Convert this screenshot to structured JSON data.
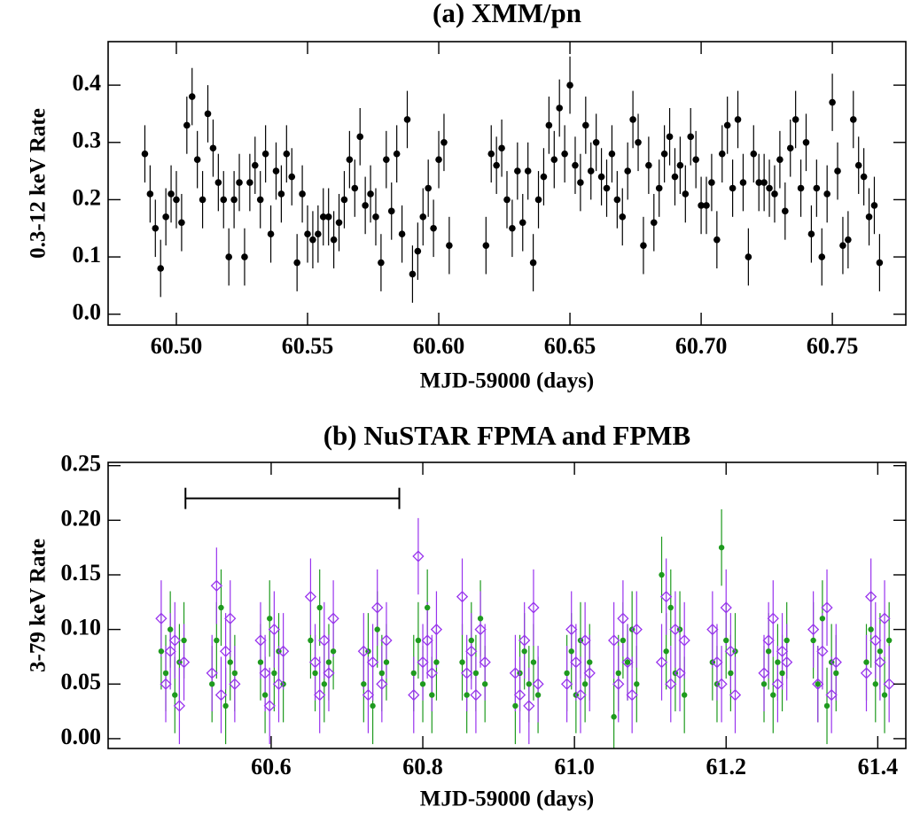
{
  "chart_data": [
    {
      "type": "scatter",
      "title": "(a) XMM/pn",
      "xlabel": "MJD-59000 (days)",
      "ylabel": "0.3-12 keV Rate",
      "xlim": [
        60.474,
        60.778
      ],
      "ylim": [
        -0.019,
        0.476
      ],
      "xticks": [
        {
          "value": 60.5,
          "label": "60.50"
        },
        60.55,
        {
          "value": 60.6,
          "label": "60.60"
        },
        60.65,
        {
          "value": 60.7,
          "label": "60.70"
        },
        60.75
      ],
      "yticks": [
        {
          "value": 0,
          "label": "0.0"
        },
        0.1,
        0.2,
        0.3,
        0.4
      ],
      "x": [
        60.488,
        60.49,
        60.492,
        60.494,
        60.496,
        60.498,
        60.5,
        60.502,
        60.504,
        60.506,
        60.508,
        60.51,
        60.512,
        60.514,
        60.516,
        60.518,
        60.52,
        60.522,
        60.524,
        60.526,
        60.528,
        60.53,
        60.532,
        60.534,
        60.536,
        60.538,
        60.54,
        60.542,
        60.544,
        60.546,
        60.548,
        60.55,
        60.552,
        60.554,
        60.556,
        60.558,
        60.56,
        60.562,
        60.564,
        60.566,
        60.568,
        60.57,
        60.572,
        60.574,
        60.576,
        60.578,
        60.58,
        60.582,
        60.584,
        60.586,
        60.588,
        60.59,
        60.592,
        60.594,
        60.596,
        60.598,
        60.6,
        60.602,
        60.604,
        60.618,
        60.62,
        60.622,
        60.624,
        60.626,
        60.628,
        60.63,
        60.632,
        60.634,
        60.636,
        60.638,
        60.64,
        60.642,
        60.644,
        60.646,
        60.648,
        60.65,
        60.652,
        60.654,
        60.656,
        60.658,
        60.66,
        60.662,
        60.664,
        60.666,
        60.668,
        60.67,
        60.672,
        60.674,
        60.676,
        60.678,
        60.68,
        60.682,
        60.684,
        60.686,
        60.688,
        60.69,
        60.692,
        60.694,
        60.696,
        60.698,
        60.7,
        60.702,
        60.704,
        60.706,
        60.708,
        60.71,
        60.712,
        60.714,
        60.716,
        60.718,
        60.72,
        60.722,
        60.724,
        60.726,
        60.728,
        60.73,
        60.732,
        60.734,
        60.736,
        60.738,
        60.74,
        60.742,
        60.744,
        60.746,
        60.748,
        60.75,
        60.752,
        60.754,
        60.756,
        60.758,
        60.76,
        60.762,
        60.764,
        60.766,
        60.768
      ],
      "series": [
        {
          "color": "#000000",
          "marker": "circle",
          "error": 0.05,
          "values": [
            0.28,
            0.21,
            0.15,
            0.08,
            0.17,
            0.21,
            0.2,
            0.16,
            0.33,
            0.38,
            0.27,
            0.2,
            0.35,
            0.29,
            0.23,
            0.2,
            0.1,
            0.2,
            0.23,
            0.1,
            0.23,
            0.26,
            0.2,
            0.28,
            0.14,
            0.25,
            0.21,
            0.28,
            0.24,
            0.09,
            0.21,
            0.14,
            0.13,
            0.14,
            0.17,
            0.17,
            0.13,
            0.16,
            0.2,
            0.27,
            0.22,
            0.31,
            0.19,
            0.21,
            0.17,
            0.09,
            0.27,
            0.18,
            0.28,
            0.14,
            0.34,
            0.07,
            0.11,
            0.17,
            0.22,
            0.15,
            0.27,
            0.3,
            0.12,
            0.12,
            0.28,
            0.26,
            0.29,
            0.2,
            0.15,
            0.25,
            0.16,
            0.25,
            0.09,
            0.2,
            0.24,
            0.33,
            0.27,
            0.36,
            0.28,
            0.4,
            0.26,
            0.23,
            0.33,
            0.25,
            0.3,
            0.24,
            0.22,
            0.28,
            0.2,
            0.17,
            0.25,
            0.34,
            0.3,
            0.12,
            0.26,
            0.16,
            0.22,
            0.28,
            0.31,
            0.24,
            0.26,
            0.21,
            0.31,
            0.27,
            0.19,
            0.19,
            0.23,
            0.13,
            0.28,
            0.33,
            0.22,
            0.34,
            0.23,
            0.1,
            0.28,
            0.23,
            0.23,
            0.22,
            0.21,
            0.27,
            0.18,
            0.29,
            0.34,
            0.22,
            0.3,
            0.14,
            0.22,
            0.1,
            0.21,
            0.37,
            0.25,
            0.12,
            0.13,
            0.34,
            0.26,
            0.24,
            0.17,
            0.19,
            0.09
          ]
        }
      ]
    },
    {
      "type": "scatter",
      "title": "(b) NuSTAR FPMA and FPMB",
      "xlabel": "MJD-59000 (days)",
      "ylabel": "3-79 keV Rate",
      "xlim": [
        60.385,
        61.437
      ],
      "ylim": [
        -0.009,
        0.253
      ],
      "xticks": [
        60.6,
        60.8,
        {
          "value": 61.0,
          "label": "61.0"
        },
        61.2,
        61.4
      ],
      "yticks": [
        {
          "value": 0,
          "label": "0.00"
        },
        0.05,
        {
          "value": 0.1,
          "label": "0.10"
        },
        0.15,
        {
          "value": 0.2,
          "label": "0.20"
        },
        0.25
      ],
      "span": {
        "x": [
          60.487,
          60.769
        ],
        "y": 0.22
      },
      "x": [
        60.455,
        60.461,
        60.467,
        60.473,
        60.479,
        60.485,
        60.522,
        60.528,
        60.534,
        60.54,
        60.546,
        60.552,
        60.586,
        60.592,
        60.598,
        60.604,
        60.61,
        60.616,
        60.652,
        60.658,
        60.664,
        60.67,
        60.676,
        60.682,
        60.722,
        60.728,
        60.734,
        60.74,
        60.746,
        60.752,
        60.788,
        60.794,
        60.8,
        60.806,
        60.812,
        60.818,
        60.852,
        60.858,
        60.864,
        60.87,
        60.876,
        60.882,
        60.922,
        60.928,
        60.934,
        60.94,
        60.946,
        60.952,
        60.99,
        60.996,
        61.002,
        61.008,
        61.014,
        61.02,
        61.052,
        61.058,
        61.064,
        61.07,
        61.076,
        61.082,
        61.115,
        61.121,
        61.127,
        61.133,
        61.139,
        61.145,
        61.182,
        61.188,
        61.194,
        61.2,
        61.206,
        61.212,
        61.25,
        61.256,
        61.262,
        61.268,
        61.274,
        61.28,
        61.315,
        61.321,
        61.327,
        61.333,
        61.339,
        61.345,
        61.385,
        61.391,
        61.397,
        61.403,
        61.409,
        61.415
      ],
      "series": [
        {
          "color": "#1e9a1e",
          "marker": "circle",
          "error": 0.035,
          "values": [
            0.08,
            0.06,
            0.1,
            0.04,
            0.07,
            0.09,
            0.05,
            0.09,
            0.12,
            0.03,
            0.07,
            0.06,
            0.07,
            0.04,
            0.11,
            0.06,
            0.08,
            0.05,
            0.09,
            0.06,
            0.12,
            0.05,
            0.07,
            0.08,
            0.05,
            0.08,
            0.03,
            0.1,
            0.06,
            0.07,
            0.06,
            0.09,
            0.05,
            0.12,
            0.04,
            0.07,
            0.07,
            0.04,
            0.09,
            0.06,
            0.11,
            0.05,
            0.03,
            0.06,
            0.08,
            0.05,
            0.07,
            0.04,
            0.06,
            0.08,
            0.04,
            0.09,
            0.05,
            0.07,
            0.02,
            0.06,
            0.09,
            0.07,
            0.1,
            0.05,
            0.15,
            0.08,
            0.12,
            0.06,
            0.1,
            0.04,
            0.07,
            0.05,
            0.175,
            0.09,
            0.06,
            0.08,
            0.05,
            0.08,
            0.04,
            0.07,
            0.06,
            0.09,
            0.09,
            0.05,
            0.11,
            0.03,
            0.07,
            0.06,
            0.07,
            0.1,
            0.05,
            0.08,
            0.04,
            0.09
          ]
        },
        {
          "color": "#9933ee",
          "marker": "diamond",
          "error": 0.035,
          "values": [
            0.11,
            0.05,
            0.08,
            0.09,
            0.03,
            0.07,
            0.06,
            0.14,
            0.04,
            0.08,
            0.11,
            0.05,
            0.09,
            0.06,
            0.03,
            0.1,
            0.05,
            0.08,
            0.13,
            0.07,
            0.04,
            0.09,
            0.06,
            0.11,
            0.08,
            0.04,
            0.07,
            0.12,
            0.05,
            0.09,
            0.04,
            0.167,
            0.07,
            0.09,
            0.06,
            0.1,
            0.13,
            0.06,
            0.08,
            0.04,
            0.1,
            0.07,
            0.06,
            0.04,
            0.09,
            0.03,
            0.12,
            0.05,
            0.05,
            0.1,
            0.07,
            0.04,
            0.09,
            0.06,
            0.09,
            0.05,
            0.11,
            0.07,
            0.04,
            0.1,
            0.07,
            0.13,
            0.05,
            0.1,
            0.06,
            0.09,
            0.1,
            0.07,
            0.05,
            0.12,
            0.08,
            0.04,
            0.06,
            0.09,
            0.11,
            0.05,
            0.08,
            0.07,
            0.1,
            0.05,
            0.08,
            0.12,
            0.04,
            0.07,
            0.06,
            0.13,
            0.09,
            0.07,
            0.11,
            0.05
          ]
        }
      ]
    }
  ]
}
